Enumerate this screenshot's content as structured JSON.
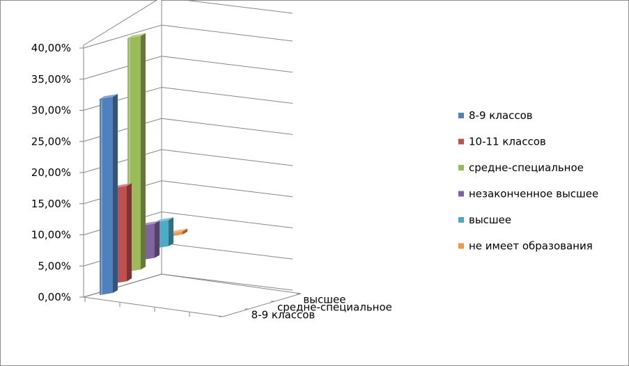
{
  "chart_data": {
    "type": "bar",
    "is_3d": true,
    "categories": [
      "8-9 классов",
      "10-11 классов",
      "средне-специальное",
      "незаконченное высшее",
      "высшее",
      "не имеет образования"
    ],
    "values": [
      31.5,
      15.3,
      37.5,
      5.5,
      4.2,
      0.5
    ],
    "colors": [
      "#4f81bd",
      "#c0504d",
      "#9bbb59",
      "#8064a2",
      "#4bacc6",
      "#f79646"
    ],
    "y_ticks": [
      "0,00%",
      "5,00%",
      "10,00%",
      "15,00%",
      "20,00%",
      "25,00%",
      "30,00%",
      "35,00%",
      "40,00%"
    ],
    "ylim": [
      0,
      40
    ],
    "depth_labels": [
      "высшее",
      "средне-специальное",
      "8-9 классов"
    ],
    "legend": [
      "8-9 классов",
      "10-11 классов",
      "средне-специальное",
      "незаконченное высшее",
      "высшее",
      "не имеет образования"
    ],
    "legend_position": "right",
    "grid": true
  }
}
